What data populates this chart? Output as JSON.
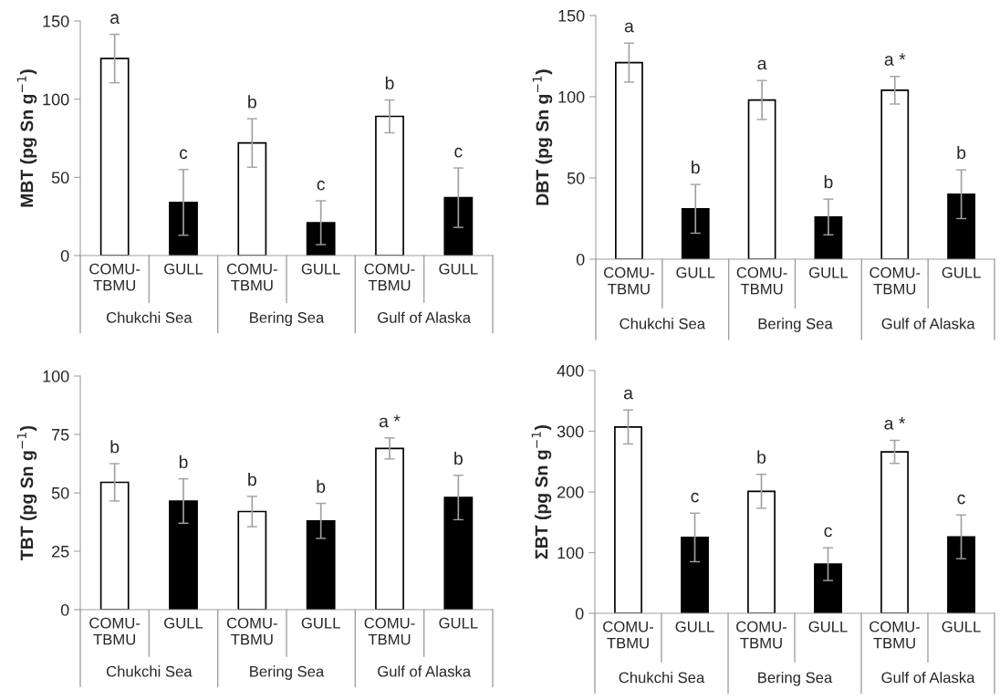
{
  "chart_data": [
    {
      "type": "bar",
      "ylabel": "MBT (pg Sn g$^{−1}$)",
      "categories": [
        "COMU-\nTBMU",
        "GULL",
        "COMU-\nTBMU",
        "GULL",
        "COMU-\nTBMU",
        "GULL"
      ],
      "values": [
        126,
        34,
        72,
        21,
        89,
        37
      ],
      "errors": [
        15.5,
        21,
        15.5,
        14,
        10.5,
        19
      ],
      "colors": [
        "#ffffff",
        "#000000",
        "#ffffff",
        "#000000",
        "#ffffff",
        "#000000"
      ],
      "value_labels": [
        "a",
        "c",
        "b",
        "c",
        "b",
        "c"
      ],
      "ylim": [
        0,
        150
      ],
      "yticks": [
        0,
        50,
        100,
        150
      ],
      "annotations": [
        "Chukchi Sea",
        "Bering Sea",
        "Gulf of Alaska"
      ]
    },
    {
      "type": "bar",
      "ylabel": "DBT (pg Sn g$^{−1}$)",
      "categories": [
        "COMU-\nTBMU",
        "GULL",
        "COMU-\nTBMU",
        "GULL",
        "COMU-\nTBMU",
        "GULL"
      ],
      "values": [
        121,
        31,
        98,
        26,
        104,
        40
      ],
      "errors": [
        12,
        15,
        12,
        11,
        8.5,
        15
      ],
      "colors": [
        "#ffffff",
        "#000000",
        "#ffffff",
        "#000000",
        "#ffffff",
        "#000000"
      ],
      "value_labels": [
        "a",
        "b",
        "a",
        "b",
        "a *",
        "b"
      ],
      "ylim": [
        0,
        150
      ],
      "yticks": [
        0,
        50,
        100,
        150
      ],
      "annotations": [
        "Chukchi Sea",
        "Bering Sea",
        "Gulf of Alaska"
      ]
    },
    {
      "type": "bar",
      "ylabel": "TBT (pg Sn g$^{−1}$)",
      "categories": [
        "COMU-\nTBMU",
        "GULL",
        "COMU-\nTBMU",
        "GULL",
        "COMU-\nTBMU",
        "GULL"
      ],
      "values": [
        54.5,
        46.5,
        42,
        38,
        69,
        48
      ],
      "errors": [
        8,
        9.5,
        6.5,
        7.5,
        4.5,
        9.5
      ],
      "colors": [
        "#ffffff",
        "#000000",
        "#ffffff",
        "#000000",
        "#ffffff",
        "#000000"
      ],
      "value_labels": [
        "b",
        "b",
        "b",
        "b",
        "a *",
        "b"
      ],
      "ylim": [
        0,
        100
      ],
      "yticks": [
        0,
        25,
        50,
        75,
        100
      ],
      "annotations": [
        "Chukchi Sea",
        "Bering Sea",
        "Gulf of Alaska"
      ]
    },
    {
      "type": "bar",
      "ylabel": "ΣBT (pg Sn g$^{−1}$)",
      "categories": [
        "COMU-\nTBMU",
        "GULL",
        "COMU-\nTBMU",
        "GULL",
        "COMU-\nTBMU",
        "GULL"
      ],
      "values": [
        307,
        125,
        201,
        81,
        266,
        126
      ],
      "errors": [
        28,
        40,
        28,
        27,
        19,
        36
      ],
      "colors": [
        "#ffffff",
        "#000000",
        "#ffffff",
        "#000000",
        "#ffffff",
        "#000000"
      ],
      "value_labels": [
        "a",
        "c",
        "b",
        "c",
        "a *",
        "c"
      ],
      "ylim": [
        0,
        400
      ],
      "yticks": [
        0,
        100,
        200,
        300,
        400
      ],
      "annotations": [
        "Chukchi Sea",
        "Bering Sea",
        "Gulf of Alaska"
      ]
    }
  ]
}
